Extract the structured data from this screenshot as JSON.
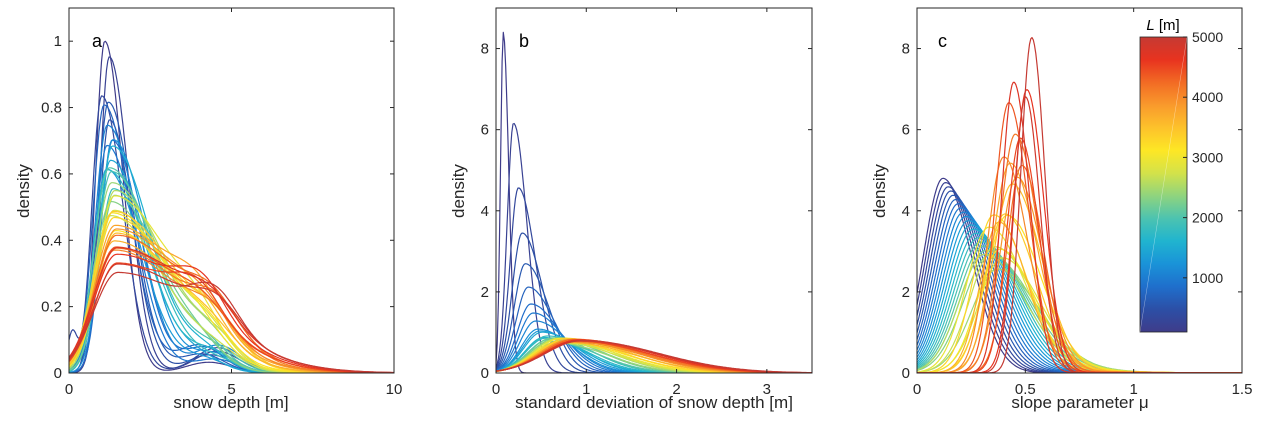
{
  "chart_data": [
    {
      "type": "line",
      "panel_letter": "a",
      "xlabel": "snow depth [m]",
      "ylabel": "density",
      "xlim": [
        0,
        10
      ],
      "ylim": [
        0,
        1.1
      ],
      "xticks": [
        0,
        5,
        10
      ],
      "xtick_labels": [
        "0",
        "5",
        "10"
      ],
      "yticks": [
        0,
        0.2,
        0.4,
        0.6,
        0.8,
        1.0
      ],
      "ytick_labels": [
        "0",
        "0.2",
        "0.4",
        "0.6",
        "0.8",
        "1"
      ],
      "grid": false,
      "curve_family": {
        "count": 41,
        "length_range_m": [
          100,
          5000
        ],
        "description": "one density curve per window length L; colour encodes L",
        "short_L_peak": {
          "x": 1.1,
          "y": 1.0
        },
        "long_L_peak": {
          "x": 1.5,
          "y": 0.33
        },
        "secondary_bump": {
          "x": 4.3,
          "y": 0.18
        }
      }
    },
    {
      "type": "line",
      "panel_letter": "b",
      "xlabel": "standard deviation of snow depth [m]",
      "ylabel": "density",
      "xlim": [
        0,
        3.5
      ],
      "ylim": [
        0,
        9
      ],
      "xticks": [
        0,
        1,
        2,
        3
      ],
      "xtick_labels": [
        "0",
        "1",
        "2",
        "3"
      ],
      "yticks": [
        0,
        2,
        4,
        6,
        8
      ],
      "ytick_labels": [
        "0",
        "2",
        "4",
        "6",
        "8"
      ],
      "grid": false,
      "curve_family": {
        "count": 41,
        "length_range_m": [
          100,
          5000
        ],
        "short_L_peak": {
          "x": 0.08,
          "y": 8.4
        },
        "long_L_peak": {
          "x": 0.95,
          "y": 0.8
        }
      }
    },
    {
      "type": "line",
      "panel_letter": "c",
      "xlabel": "slope parameter μ",
      "ylabel": "density",
      "xlim": [
        0,
        1.5
      ],
      "ylim": [
        0,
        9
      ],
      "xticks": [
        0,
        0.5,
        1,
        1.5
      ],
      "xtick_labels": [
        "0",
        "0.5",
        "1",
        "1.5"
      ],
      "yticks": [
        0,
        2,
        4,
        6,
        8
      ],
      "ytick_labels": [
        "0",
        "2",
        "4",
        "6",
        "8"
      ],
      "grid": false,
      "curve_family": {
        "count": 41,
        "length_range_m": [
          100,
          5000
        ],
        "short_L_peak": {
          "x": 0.12,
          "y": 4.8
        },
        "mid_L_peak": {
          "x": 0.33,
          "y": 2.9
        },
        "long_L_peak": {
          "x": 0.5,
          "y": 8.3
        }
      },
      "colorbar": {
        "title_var": "L",
        "title_unit": " [m]",
        "range": [
          100,
          5000
        ],
        "ticks": [
          1000,
          2000,
          3000,
          4000,
          5000
        ],
        "tick_labels": [
          "1000",
          "2000",
          "3000",
          "4000",
          "5000"
        ],
        "colormap": [
          "#3f3c8a",
          "#2c4fa6",
          "#1f6fcc",
          "#1a93d8",
          "#20b4cf",
          "#4cc3b0",
          "#8fd47e",
          "#d3e24a",
          "#fde725",
          "#fdc22b",
          "#f99a2c",
          "#f26b24",
          "#e8331f",
          "#c53a33"
        ]
      }
    }
  ]
}
